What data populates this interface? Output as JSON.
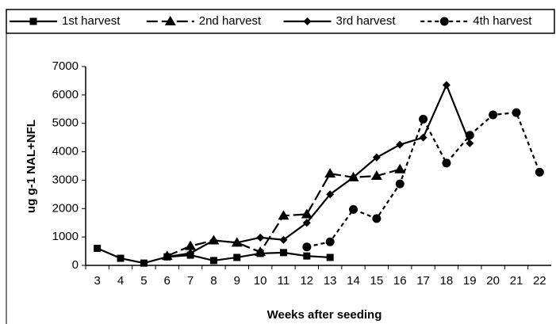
{
  "chart_data": {
    "type": "line",
    "categories": [
      "3",
      "4",
      "5",
      "6",
      "7",
      "8",
      "9",
      "10",
      "11",
      "12",
      "13",
      "14",
      "15",
      "16",
      "17",
      "18",
      "19",
      "20",
      "21",
      "22"
    ],
    "x_label": "Weeks after seeding",
    "y_label": "ug g-1 NAL+NFL",
    "ylim": [
      0,
      7000
    ],
    "yticks": [
      0,
      1000,
      2000,
      3000,
      4000,
      5000,
      6000,
      7000
    ],
    "legend": "top",
    "series": [
      {
        "name": "1st harvest",
        "color": "#000000",
        "dash": "solid",
        "marker": "square",
        "values": [
          600,
          250,
          80,
          300,
          360,
          170,
          280,
          420,
          450,
          330,
          280,
          null,
          null,
          null,
          null,
          null,
          null,
          null,
          null,
          null
        ]
      },
      {
        "name": "2nd harvest",
        "color": "#000000",
        "dash": "long",
        "marker": "triangle",
        "values": [
          null,
          null,
          null,
          330,
          680,
          880,
          800,
          470,
          1750,
          1800,
          3230,
          3100,
          3150,
          3380,
          null,
          null,
          null,
          null,
          null,
          null
        ]
      },
      {
        "name": "3rd harvest",
        "color": "#000000",
        "dash": "solid",
        "marker": "diamond",
        "values": [
          null,
          null,
          null,
          300,
          430,
          880,
          800,
          980,
          900,
          1500,
          2500,
          3100,
          3800,
          4250,
          4500,
          6350,
          4300,
          null,
          null,
          null
        ]
      },
      {
        "name": "4th harvest",
        "color": "#000000",
        "dash": "short",
        "marker": "circle",
        "values": [
          null,
          null,
          null,
          null,
          null,
          null,
          null,
          null,
          null,
          650,
          830,
          1970,
          1650,
          2870,
          5150,
          3600,
          4580,
          5300,
          5380,
          3280
        ]
      }
    ]
  }
}
